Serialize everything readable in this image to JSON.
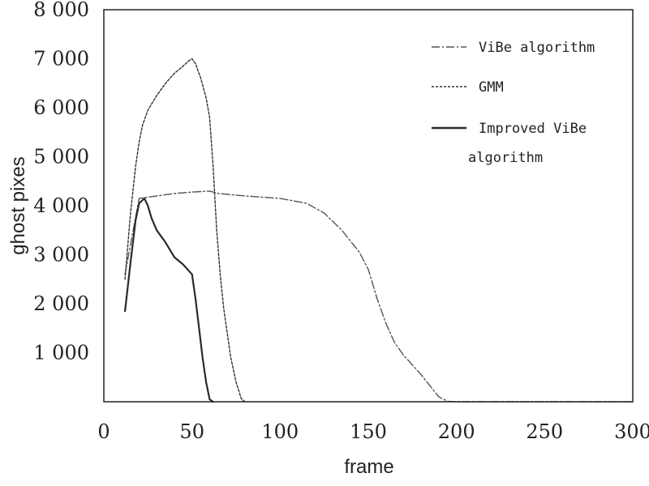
{
  "chart_data": {
    "type": "line",
    "title": "",
    "xlabel": "frame",
    "ylabel": "ghost pixes",
    "xlim": [
      0,
      300
    ],
    "ylim": [
      0,
      8000
    ],
    "x_ticks": [
      0,
      50,
      100,
      150,
      200,
      250,
      300
    ],
    "y_ticks": [
      1000,
      2000,
      3000,
      4000,
      5000,
      6000,
      7000,
      8000
    ],
    "x_tick_labels": [
      "0",
      "50",
      "100",
      "150",
      "200",
      "250",
      "300"
    ],
    "y_tick_labels": [
      "1 000",
      "2 000",
      "3 000",
      "4 000",
      "5 000",
      "6 000",
      "7 000",
      "8 000"
    ],
    "grid": false,
    "legend_position": "top-right",
    "series": [
      {
        "name": "ViBe algorithm",
        "style": "dash-dot",
        "color": "#555555",
        "x": [
          12,
          20,
          30,
          40,
          50,
          60,
          65,
          80,
          100,
          115,
          125,
          135,
          145,
          150,
          155,
          160,
          165,
          170,
          180,
          190,
          195,
          200,
          250,
          300
        ],
        "y": [
          2600,
          4150,
          4200,
          4250,
          4280,
          4300,
          4250,
          4200,
          4150,
          4050,
          3850,
          3500,
          3050,
          2700,
          2100,
          1600,
          1200,
          950,
          550,
          100,
          10,
          0,
          0,
          0
        ]
      },
      {
        "name": "GMM",
        "style": "dashed",
        "color": "#333333",
        "x": [
          12,
          15,
          18,
          20,
          22,
          25,
          30,
          35,
          40,
          45,
          48,
          50,
          52,
          55,
          58,
          60,
          62,
          64,
          66,
          68,
          70,
          72,
          75,
          78,
          80
        ],
        "y": [
          2500,
          3800,
          4800,
          5300,
          5650,
          5950,
          6250,
          6500,
          6700,
          6850,
          6950,
          7000,
          6900,
          6600,
          6200,
          5800,
          4800,
          3500,
          2600,
          1900,
          1400,
          900,
          400,
          60,
          0
        ]
      },
      {
        "name": "Improved ViBe algorithm",
        "style": "solid",
        "color": "#2a2a2a",
        "x": [
          12,
          15,
          18,
          20,
          23,
          25,
          27,
          30,
          35,
          40,
          45,
          50,
          52,
          54,
          56,
          58,
          60,
          62
        ],
        "y": [
          1850,
          2800,
          3700,
          4050,
          4150,
          4000,
          3750,
          3500,
          3250,
          2950,
          2800,
          2600,
          2100,
          1500,
          900,
          400,
          50,
          0
        ]
      }
    ]
  }
}
